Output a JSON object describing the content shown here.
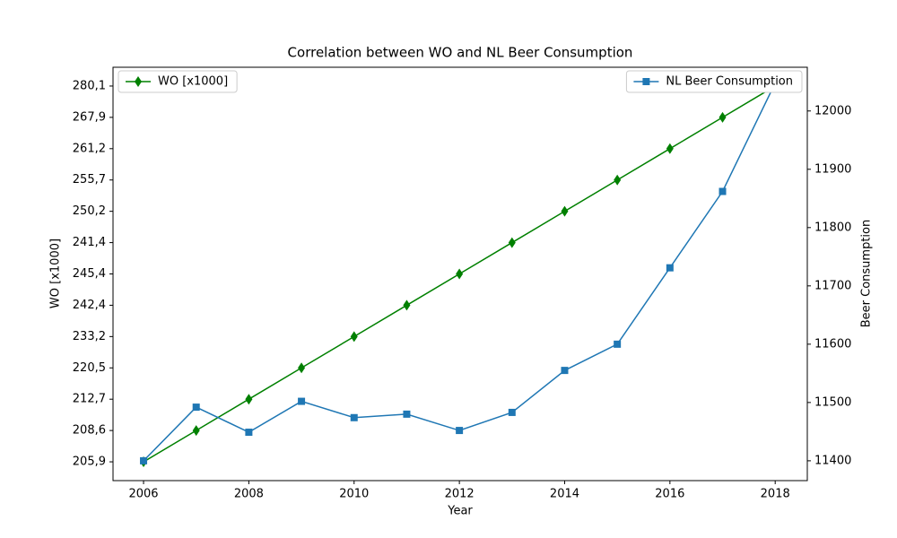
{
  "chart_data": {
    "type": "line",
    "title": "Correlation between WO and NL Beer Consumption",
    "x_label": "Year",
    "y_label": "WO [x1000]",
    "y2_label": "Beer Consumption",
    "x": [
      2006,
      2007,
      2008,
      2009,
      2010,
      2011,
      2012,
      2013,
      2014,
      2015,
      2016,
      2017,
      2018
    ],
    "xlim": [
      2005.42,
      2018.61
    ],
    "xticks": [
      2006,
      2008,
      2010,
      2012,
      2014,
      2016,
      2018
    ],
    "y_categories": [
      "205,9",
      "208,6",
      "212,7",
      "220,5",
      "233,2",
      "242,4",
      "245,4",
      "241,4",
      "250,2",
      "255,7",
      "261,2",
      "267,9",
      "280,1"
    ],
    "y2lim": [
      11366,
      12075
    ],
    "y2ticks": [
      11400,
      11500,
      11600,
      11700,
      11800,
      11900,
      12000
    ],
    "series": [
      {
        "name": "WO [x1000]",
        "color": "#008000",
        "marker": "diamond",
        "legend": "upper left",
        "values": [
          "205,9",
          "208,6",
          "212,7",
          "220,5",
          "233,2",
          "242,4",
          "245,4",
          "241,4",
          "250,2",
          "255,7",
          "261,2",
          "267,9",
          "280,1"
        ]
      },
      {
        "name": "NL Beer Consumption",
        "color": "#1f77b4",
        "marker": "square",
        "axis": "y2",
        "legend": "upper right",
        "values": [
          11400,
          11492,
          11449,
          11502,
          11474,
          11480,
          11452,
          11483,
          11555,
          11600,
          11731,
          11862,
          12048
        ]
      }
    ]
  }
}
